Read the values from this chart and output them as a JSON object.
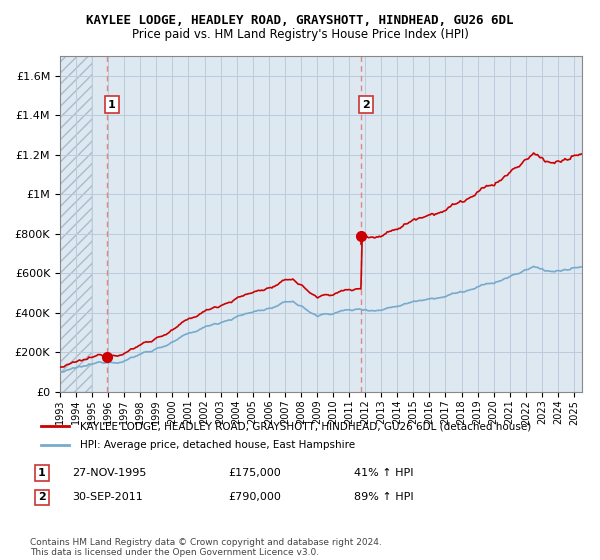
{
  "title": "KAYLEE LODGE, HEADLEY ROAD, GRAYSHOTT, HINDHEAD, GU26 6DL",
  "subtitle": "Price paid vs. HM Land Registry's House Price Index (HPI)",
  "ylim": [
    0,
    1700000
  ],
  "yticks": [
    0,
    200000,
    400000,
    600000,
    800000,
    1000000,
    1200000,
    1400000,
    1600000
  ],
  "ytick_labels": [
    "£0",
    "£200K",
    "£400K",
    "£600K",
    "£800K",
    "£1M",
    "£1.2M",
    "£1.4M",
    "£1.6M"
  ],
  "sale1_x": 1995.92,
  "sale1_y": 175000,
  "sale1_label": "1",
  "sale1_date": "27-NOV-1995",
  "sale1_price": "£175,000",
  "sale1_hpi": "41% ↑ HPI",
  "sale2_x": 2011.75,
  "sale2_y": 790000,
  "sale2_label": "2",
  "sale2_date": "30-SEP-2011",
  "sale2_price": "£790,000",
  "sale2_hpi": "89% ↑ HPI",
  "line_color_red": "#cc0000",
  "line_color_blue": "#77aacc",
  "dot_color_red": "#cc0000",
  "vline_color": "#dd8888",
  "hpi_line_label": "HPI: Average price, detached house, East Hampshire",
  "property_label": "KAYLEE LODGE, HEADLEY ROAD, GRAYSHOTT, HINDHEAD, GU26 6DL (detached house)",
  "grid_color": "#bbccdd",
  "bg_color": "#dde8f0",
  "copyright_text": "Contains HM Land Registry data © Crown copyright and database right 2024.\nThis data is licensed under the Open Government Licence v3.0.",
  "xmin": 1993,
  "xmax": 2025.5
}
